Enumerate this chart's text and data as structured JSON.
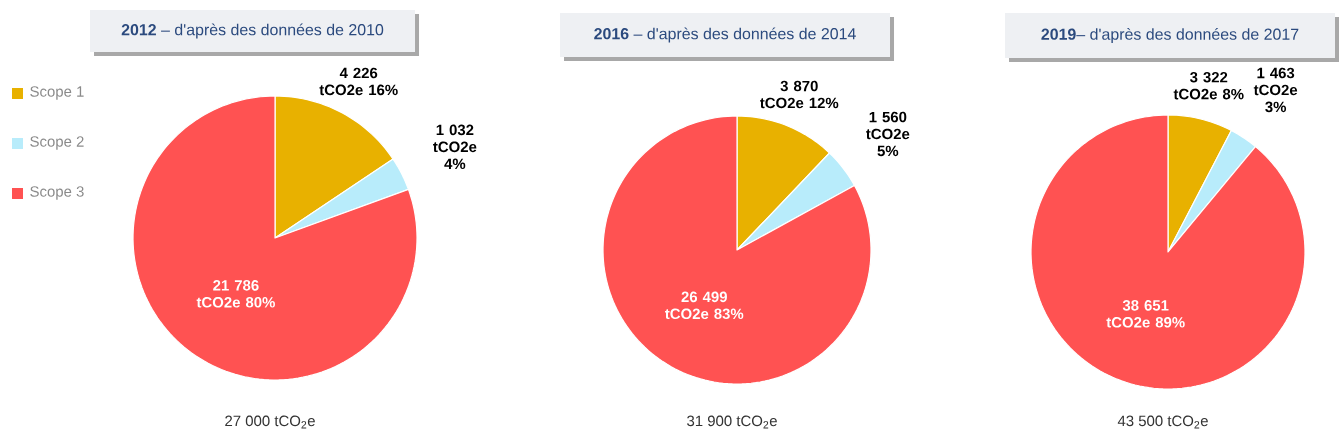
{
  "chart_data": [
    {
      "type": "pie",
      "title": "**2012** – d'après des données de 2010",
      "categories": [
        "Scope 1",
        "Scope 2",
        "Scope 3"
      ],
      "values": [
        4226,
        1032,
        21786
      ],
      "colors": [
        "#e8b100",
        "#b8ecfb",
        "#ff5252"
      ],
      "value_labels": [
        "4 226 tCO2e 16%",
        "1 032 tCO2e 4%",
        "21 786 tCO2e 80%"
      ],
      "legend": "left",
      "annotations": [
        "27 000 tCO$_{2}$e"
      ]
    },
    {
      "type": "pie",
      "title": "**2016** – d'après des données de 2014",
      "categories": [
        null,
        null,
        null
      ],
      "values": [
        3870,
        1560,
        26499
      ],
      "colors": [
        "#e8b100",
        "#b8ecfb",
        "#ff5252"
      ],
      "value_labels": [
        "3 870 tCO2e 12%",
        "1 560 tCO2e 5%",
        "26 499 tCO2e 83%"
      ],
      "annotations": [
        "31 900 tCO$_{2}$e"
      ]
    },
    {
      "type": "pie",
      "title": "**2019**– d'après des données de 2017",
      "categories": [
        null,
        null,
        null
      ],
      "values": [
        3322,
        1463,
        38651
      ],
      "colors": [
        "#e8b100",
        "#b8ecfb",
        "#ff5252"
      ],
      "value_labels": [
        "3 322 tCO2e 8%",
        "1 463 tCO2e 3%",
        "38 651 tCO2e 89%"
      ],
      "annotations": [
        "43 500 tCO$_{2}$e"
      ]
    }
  ]
}
